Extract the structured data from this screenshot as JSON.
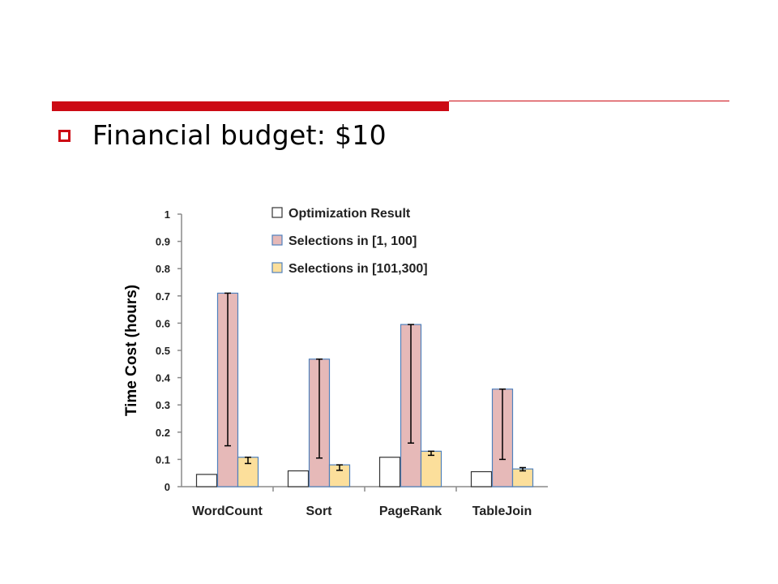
{
  "slide": {
    "bullet_text": "Financial budget: $10",
    "accent_color": "#cc0a14"
  },
  "chart_data": {
    "type": "bar",
    "ylabel": "Time Cost (hours)",
    "ylim": [
      0,
      1
    ],
    "yticks": [
      "0",
      "0.1",
      "0.2",
      "0.3",
      "0.4",
      "0.5",
      "0.6",
      "0.7",
      "0.8",
      "0.9",
      "1"
    ],
    "categories": [
      "WordCount",
      "Sort",
      "PageRank",
      "TableJoin"
    ],
    "legend_position": "top-right",
    "grid": false,
    "series": [
      {
        "name": "Optimization Result",
        "color": "#ffffff",
        "values": [
          0.045,
          0.058,
          0.108,
          0.055
        ]
      },
      {
        "name": "Selections in [1, 100]",
        "color": "#e6b9b8",
        "values": [
          0.71,
          0.468,
          0.595,
          0.358
        ],
        "error_low": [
          0.15,
          0.105,
          0.16,
          0.1
        ],
        "error_high": [
          0.71,
          0.468,
          0.595,
          0.358
        ]
      },
      {
        "name": "Selections in [101,300]",
        "color": "#fcdf9b",
        "values": [
          0.108,
          0.08,
          0.13,
          0.065
        ],
        "error_low": [
          0.085,
          0.06,
          0.115,
          0.058
        ],
        "error_high": [
          0.108,
          0.08,
          0.13,
          0.07
        ]
      }
    ]
  }
}
